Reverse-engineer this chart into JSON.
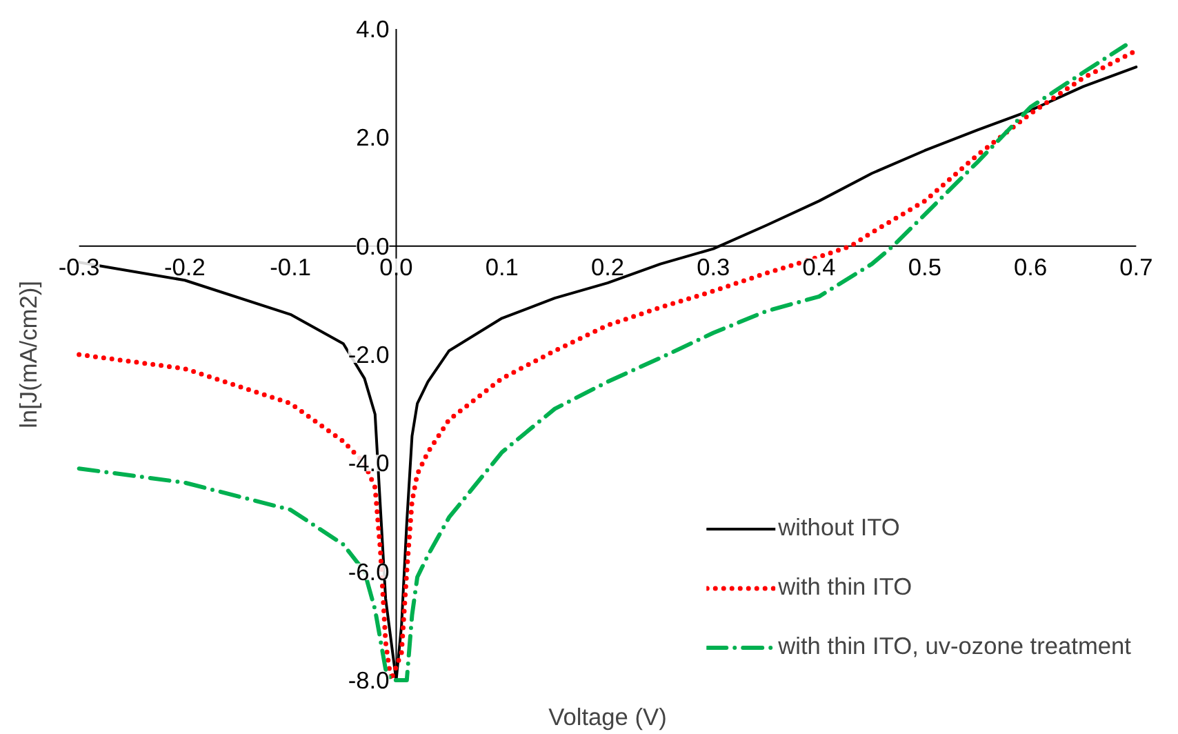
{
  "chart_data": {
    "type": "line",
    "xlabel": "Voltage (V)",
    "ylabel": "ln[J(mA/cm2)]",
    "xlim": [
      -0.3,
      0.7
    ],
    "ylim": [
      -8,
      4
    ],
    "xticks": [
      -0.3,
      -0.2,
      -0.1,
      {
        "value": 0,
        "label": "0.0"
      },
      0.1,
      0.2,
      0.3,
      0.4,
      0.5,
      0.6,
      0.7
    ],
    "yticks": [
      {
        "value": -8,
        "label": "-8.0"
      },
      {
        "value": -6,
        "label": "-6.0"
      },
      {
        "value": -4,
        "label": "-4.0"
      },
      {
        "value": -2,
        "label": "-2.0"
      },
      {
        "value": 0,
        "label": "0.0"
      },
      {
        "value": 2,
        "label": "2.0"
      },
      {
        "value": 4,
        "label": "4.0"
      }
    ],
    "grid": false,
    "legend": "bottom right",
    "marker": "none",
    "series": [
      {
        "name": "without ITO",
        "color": "#000000",
        "line_style": "solid",
        "x": [
          -0.3,
          -0.2,
          -0.1,
          -0.05,
          -0.03,
          -0.02,
          -0.01,
          0,
          0.005,
          0.01,
          0.015,
          0.02,
          0.03,
          0.05,
          0.1,
          0.15,
          0.2,
          0.25,
          0.3,
          0.35,
          0.4,
          0.45,
          0.5,
          0.55,
          0.6,
          0.65,
          0.7
        ],
        "values": [
          -0.3,
          -0.63,
          -1.26,
          -1.8,
          -2.44,
          -3.1,
          -6.5,
          -8,
          -7,
          -5.1,
          -3.5,
          -2.9,
          -2.5,
          -1.93,
          -1.33,
          -0.96,
          -0.68,
          -0.33,
          -0.05,
          0.38,
          0.83,
          1.34,
          1.76,
          2.14,
          2.5,
          2.94,
          3.3
        ]
      },
      {
        "name": "with thin ITO",
        "color": "#ff0000",
        "line_style": "dotted",
        "x": [
          -0.3,
          -0.2,
          -0.1,
          -0.05,
          -0.03,
          -0.02,
          -0.015,
          -0.01,
          -0.005,
          0.005,
          0.01,
          0.015,
          0.02,
          0.03,
          0.05,
          0.1,
          0.15,
          0.2,
          0.25,
          0.3,
          0.35,
          0.4,
          0.43,
          0.45,
          0.5,
          0.55,
          0.6,
          0.65,
          0.7
        ],
        "values": [
          -2.0,
          -2.26,
          -2.9,
          -3.6,
          -4.0,
          -4.45,
          -5.6,
          -7.3,
          -8,
          -7.5,
          -6.0,
          -4.7,
          -4.2,
          -3.8,
          -3.2,
          -2.44,
          -1.93,
          -1.46,
          -1.13,
          -0.83,
          -0.5,
          -0.2,
          0,
          0.25,
          0.83,
          1.68,
          2.44,
          3.1,
          3.6
        ]
      },
      {
        "name": "with thin ITO, uv-ozone treatment",
        "color": "#00b050",
        "line_style": "dashdot",
        "x": [
          -0.3,
          -0.2,
          -0.1,
          -0.05,
          -0.03,
          -0.02,
          -0.01,
          -0.005,
          0.01,
          0.015,
          0.02,
          0.03,
          0.05,
          0.1,
          0.15,
          0.2,
          0.25,
          0.3,
          0.35,
          0.4,
          0.45,
          0.47,
          0.5,
          0.55,
          0.6,
          0.65,
          0.69
        ],
        "values": [
          -4.1,
          -4.36,
          -4.86,
          -5.5,
          -6.0,
          -6.7,
          -7.8,
          -8,
          -8,
          -6.8,
          -6.1,
          -5.7,
          -5.0,
          -3.8,
          -3.0,
          -2.5,
          -2.06,
          -1.6,
          -1.2,
          -0.93,
          -0.33,
          0,
          0.58,
          1.55,
          2.56,
          3.2,
          3.7
        ]
      }
    ]
  }
}
